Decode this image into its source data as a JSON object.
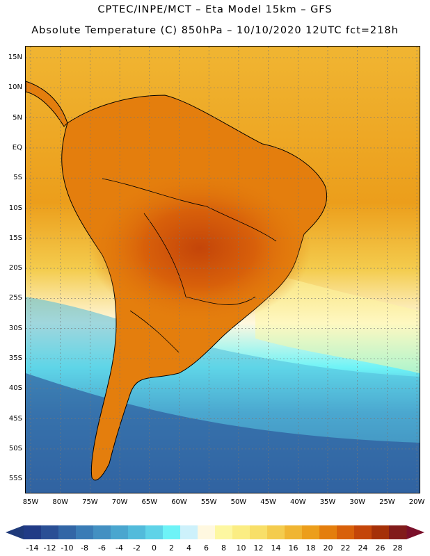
{
  "title_line1": "CPTEC/INPE/MCT –  Eta Model 15km – GFS",
  "title_line2": "Absolute Temperature (C) 850hPa – 10/10/2020 12UTC fct=218h",
  "lat_labels": [
    "15N",
    "10N",
    "5N",
    "EQ",
    "5S",
    "10S",
    "15S",
    "20S",
    "25S",
    "30S",
    "35S",
    "40S",
    "45S",
    "50S",
    "55S"
  ],
  "lon_labels": [
    "85W",
    "80W",
    "75W",
    "70W",
    "65W",
    "60W",
    "55W",
    "50W",
    "45W",
    "40W",
    "35W",
    "30W",
    "25W",
    "20W"
  ],
  "colorbar": {
    "labels": [
      "-14",
      "-12",
      "-10",
      "-8",
      "-6",
      "-4",
      "-2",
      "0",
      "2",
      "4",
      "6",
      "8",
      "10",
      "12",
      "14",
      "16",
      "18",
      "20",
      "22",
      "24",
      "26",
      "28"
    ],
    "under_color": "#1f3a7a",
    "over_color": "#7a0f2a",
    "colors": [
      "#213b86",
      "#2a4f95",
      "#3266a6",
      "#3a7cb6",
      "#4390c2",
      "#4aa6cf",
      "#52bbdb",
      "#5fd3e8",
      "#6ef3f7",
      "#cdf1fb",
      "#fff8e0",
      "#fdf7a1",
      "#fbed83",
      "#f8df68",
      "#f4cc4e",
      "#f0b532",
      "#ec9e1b",
      "#e47e0d",
      "#d8600a",
      "#c44509",
      "#a53008",
      "#811b1a"
    ]
  },
  "grid": "dashed"
}
